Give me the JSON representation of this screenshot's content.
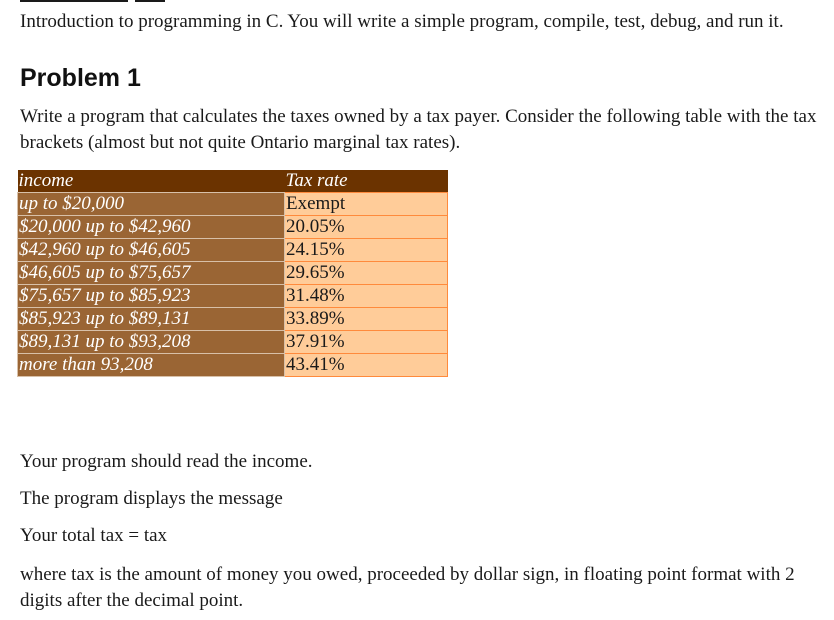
{
  "intro": "Introduction to programming in C. You will write a simple program, compile, test, debug, and run it.",
  "problem": {
    "title": "Problem 1",
    "description": "Write a program that calculates the taxes owned by a tax payer. Consider the following table with the tax brackets (almost but not quite Ontario marginal tax rates)."
  },
  "tax_table": {
    "headers": [
      "income",
      "Tax rate"
    ],
    "rows": [
      [
        "up to $20,000",
        "Exempt"
      ],
      [
        "$20,000 up to $42,960",
        "20.05%"
      ],
      [
        "$42,960 up to $46,605",
        "24.15%"
      ],
      [
        "$46,605 up to $75,657",
        "29.65%"
      ],
      [
        "$75,657 up to $85,923",
        "31.48%"
      ],
      [
        "$85,923 up to $89,131",
        "33.89%"
      ],
      [
        "$89,131 up to $93,208",
        "37.91%"
      ],
      [
        "more than 93,208",
        "43.41%"
      ]
    ],
    "colors": {
      "header_bg": "#6b3300",
      "income_bg": "#9a6534",
      "rate_bg": "#ffcc99",
      "rate_border": "#ff8a3c"
    }
  },
  "instructions": {
    "read_income": "Your program should read the income.",
    "displays": "The program displays the message",
    "output_format": "Your total tax = tax",
    "explanation": "where tax is the amount of money you owed, proceeded by dollar sign, in floating point format with 2 digits after the decimal point."
  }
}
